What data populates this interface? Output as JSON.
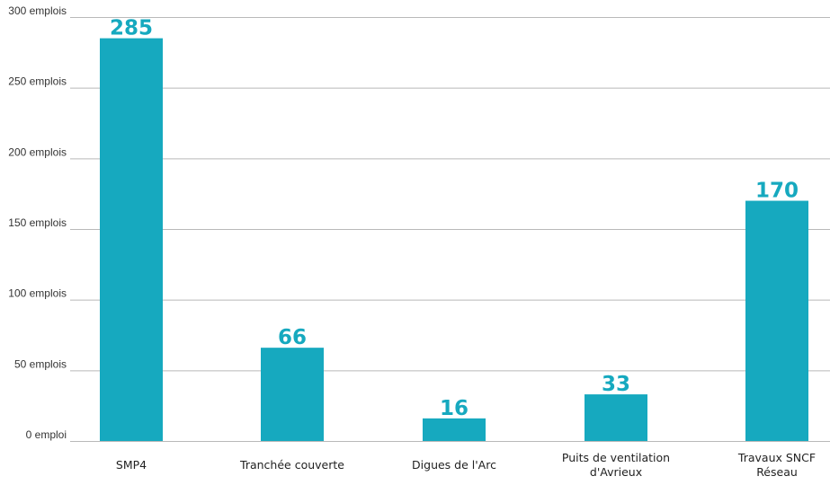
{
  "chart_data": {
    "type": "bar",
    "categories": [
      [
        "SMP4"
      ],
      [
        "Tranchée couverte"
      ],
      [
        "Digues de l'Arc"
      ],
      [
        "Puits de ventilation",
        "d'Avrieux"
      ],
      [
        "Travaux  SNCF",
        "Réseau"
      ]
    ],
    "values": [
      285,
      66,
      16,
      33,
      170
    ],
    "data_labels": [
      "285",
      "66",
      "16",
      "33",
      "170"
    ],
    "y_ticks": [
      {
        "value": 0,
        "label": "0 emploi"
      },
      {
        "value": 50,
        "label": "50 emplois"
      },
      {
        "value": 100,
        "label": "100 emplois"
      },
      {
        "value": 150,
        "label": "150 emplois"
      },
      {
        "value": 200,
        "label": "200 emplois"
      },
      {
        "value": 250,
        "label": "250 emplois"
      },
      {
        "value": 300,
        "label": "300 emplois"
      }
    ],
    "ylim": [
      0,
      300
    ],
    "grid": true,
    "title": "",
    "xlabel": "",
    "ylabel": "",
    "colors": {
      "bar": "#16a9bf",
      "label": "#16a9bf",
      "grid": "#b9b9b9"
    }
  }
}
